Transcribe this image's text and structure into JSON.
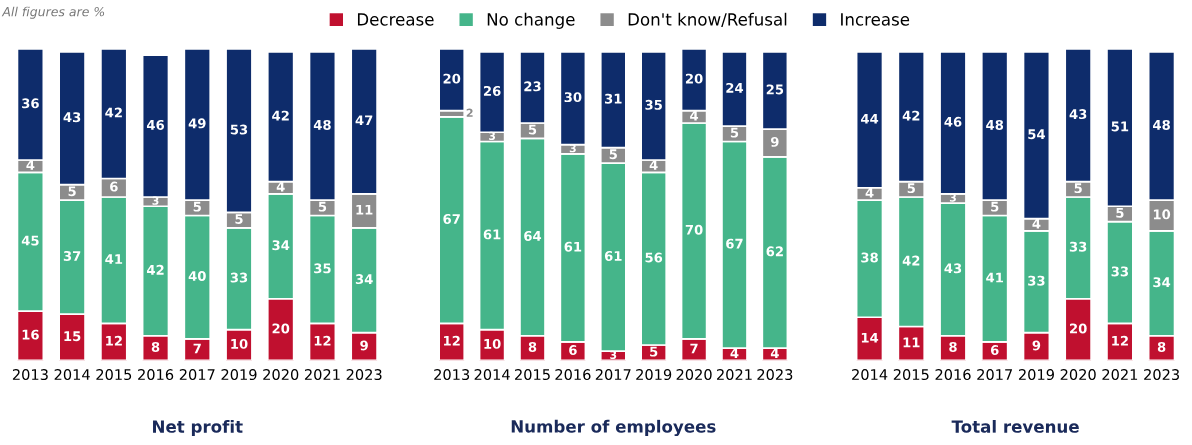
{
  "chart_data": [
    {
      "type": "bar",
      "stacked": true,
      "title": "Net profit",
      "categories": [
        "2013",
        "2014",
        "2015",
        "2016",
        "2017",
        "2019",
        "2020",
        "2021",
        "2023"
      ],
      "data_labels": true,
      "legend": "top",
      "grid": false,
      "annotations": [
        "All figures are %"
      ],
      "series": [
        {
          "name": "Decrease",
          "color": "#c0102f",
          "values": [
            16,
            15,
            12,
            8,
            7,
            10,
            20,
            12,
            9
          ]
        },
        {
          "name": "No change",
          "color": "#45b58a",
          "values": [
            45,
            37,
            41,
            42,
            40,
            33,
            34,
            35,
            34
          ]
        },
        {
          "name": "Don't know/Refusal",
          "color": "#8c8c8c",
          "values": [
            4,
            5,
            6,
            3,
            5,
            5,
            4,
            5,
            11
          ]
        },
        {
          "name": "Increase",
          "color": "#0e2c6b",
          "values": [
            36,
            43,
            42,
            46,
            49,
            53,
            42,
            48,
            47
          ]
        }
      ]
    },
    {
      "type": "bar",
      "stacked": true,
      "title": "Number of employees",
      "categories": [
        "2013",
        "2014",
        "2015",
        "2016",
        "2017",
        "2019",
        "2020",
        "2021",
        "2023"
      ],
      "data_labels": true,
      "grid": false,
      "series": [
        {
          "name": "Decrease",
          "color": "#c0102f",
          "values": [
            12,
            10,
            8,
            6,
            3,
            5,
            7,
            4,
            4
          ]
        },
        {
          "name": "No change",
          "color": "#45b58a",
          "values": [
            67,
            61,
            64,
            61,
            61,
            56,
            70,
            67,
            62
          ]
        },
        {
          "name": "Don't know/Refusal",
          "color": "#8c8c8c",
          "values": [
            2,
            3,
            5,
            3,
            5,
            4,
            4,
            5,
            9
          ]
        },
        {
          "name": "Increase",
          "color": "#0e2c6b",
          "values": [
            20,
            26,
            23,
            30,
            31,
            35,
            20,
            24,
            25
          ]
        }
      ]
    },
    {
      "type": "bar",
      "stacked": true,
      "title": "Total revenue",
      "categories": [
        "2014",
        "2015",
        "2016",
        "2017",
        "2019",
        "2020",
        "2021",
        "2023"
      ],
      "data_labels": true,
      "grid": false,
      "series": [
        {
          "name": "Decrease",
          "color": "#c0102f",
          "values": [
            14,
            11,
            8,
            6,
            9,
            20,
            12,
            8
          ]
        },
        {
          "name": "No change",
          "color": "#45b58a",
          "values": [
            38,
            42,
            43,
            41,
            33,
            33,
            33,
            34
          ]
        },
        {
          "name": "Don't know/Refusal",
          "color": "#8c8c8c",
          "values": [
            4,
            5,
            3,
            5,
            4,
            5,
            5,
            10
          ]
        },
        {
          "name": "Increase",
          "color": "#0e2c6b",
          "values": [
            44,
            42,
            46,
            48,
            54,
            43,
            51,
            48
          ]
        }
      ]
    }
  ]
}
